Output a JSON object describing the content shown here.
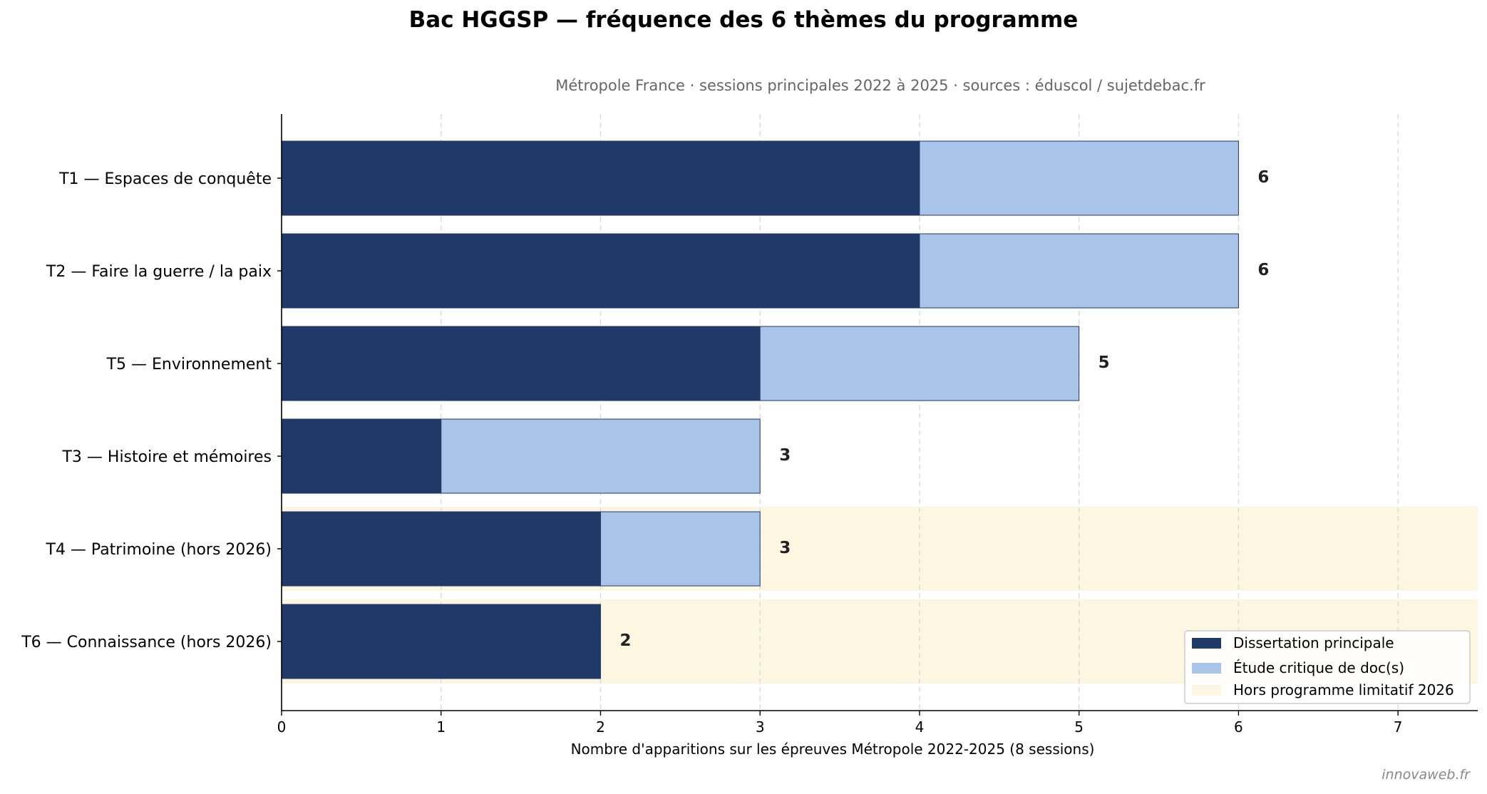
{
  "chart_data": {
    "type": "bar",
    "orientation": "horizontal",
    "stacked": true,
    "title": "Bac HGGSP — fréquence des 6 thèmes du programme",
    "subtitle": "Métropole France · sessions principales 2022 à 2025 · sources : éduscol / sujetdebac.fr",
    "xlabel": "Nombre d'apparitions sur les épreuves Métropole 2022-2025 (8 sessions)",
    "ylabel": "",
    "xlim": [
      0,
      7.5
    ],
    "xticks": [
      0,
      1,
      2,
      3,
      4,
      5,
      6,
      7
    ],
    "grid": "vertical dashed",
    "legend_position": "bottom-right",
    "categories": [
      "T1 — Espaces de conquête",
      "T2 — Faire la guerre / la paix",
      "T5 — Environnement",
      "T3 — Histoire et mémoires",
      "T4 — Patrimoine (hors 2026)",
      "T6 — Connaissance (hors 2026)"
    ],
    "series": [
      {
        "name": "Dissertation principale",
        "color": "#1f3a68",
        "values": [
          4,
          4,
          3,
          1,
          2,
          2
        ]
      },
      {
        "name": "Étude critique de doc(s)",
        "color": "#a8c4e8",
        "values": [
          2,
          2,
          2,
          2,
          1,
          0
        ]
      }
    ],
    "totals": [
      "6",
      "6",
      "5",
      "3",
      "3",
      "2"
    ],
    "highlight": {
      "name": "Hors programme limitatif 2026",
      "color": "#fdf6e1",
      "categories": [
        4,
        5
      ]
    }
  },
  "watermark": "innovaweb.fr"
}
